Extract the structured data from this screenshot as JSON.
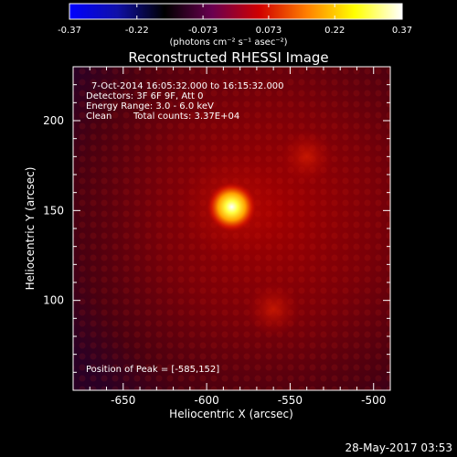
{
  "colorbar": {
    "tick_labels": [
      "-0.37",
      "-0.22",
      "-0.073",
      "0.073",
      "0.22",
      "0.37"
    ],
    "ticks": [
      -0.37,
      -0.22,
      -0.073,
      0.073,
      0.22,
      0.37
    ],
    "range": [
      -0.37,
      0.37
    ],
    "unit_label": "(photons cm⁻² s⁻¹ asec⁻²)",
    "stops": [
      "#0000ff",
      "#1010a8",
      "#000000",
      "#6a0050",
      "#d00000",
      "#ff8000",
      "#ffff00",
      "#ffffff"
    ]
  },
  "title": "Reconstructed RHESSI Image",
  "annotations": {
    "line1": "7-Oct-2014 16:05:32.000 to 16:15:32.000",
    "line2": "Detectors: 3F 6F 9F, Att 0",
    "line3": "Energy Range: 3.0 - 6.0 keV",
    "line4_a": "Clean",
    "line4_b": "Total counts: 3.37E+04",
    "peak": "Position of Peak = [-585,152]"
  },
  "footer_date": "28-May-2017 03:53",
  "chart_data": {
    "type": "heatmap",
    "title": "Reconstructed RHESSI Image",
    "xlabel": "Heliocentric X (arcsec)",
    "ylabel": "Heliocentric Y (arcsec)",
    "xlim": [
      -680,
      -490
    ],
    "ylim": [
      50,
      230
    ],
    "x_ticks": [
      -650,
      -600,
      -550,
      -500
    ],
    "x_tick_labels": [
      "-650",
      "-600",
      "-550",
      "-500"
    ],
    "y_ticks": [
      100,
      150,
      200
    ],
    "y_tick_labels": [
      "100",
      "150",
      "200"
    ],
    "peak": {
      "x": -585,
      "y": 152,
      "value": 0.37
    },
    "secondary_sources": [
      {
        "x": -560,
        "y": 95,
        "value": 0.12
      },
      {
        "x": -540,
        "y": 180,
        "value": 0.08
      }
    ],
    "value_range": [
      -0.37,
      0.37
    ],
    "grid": false
  }
}
